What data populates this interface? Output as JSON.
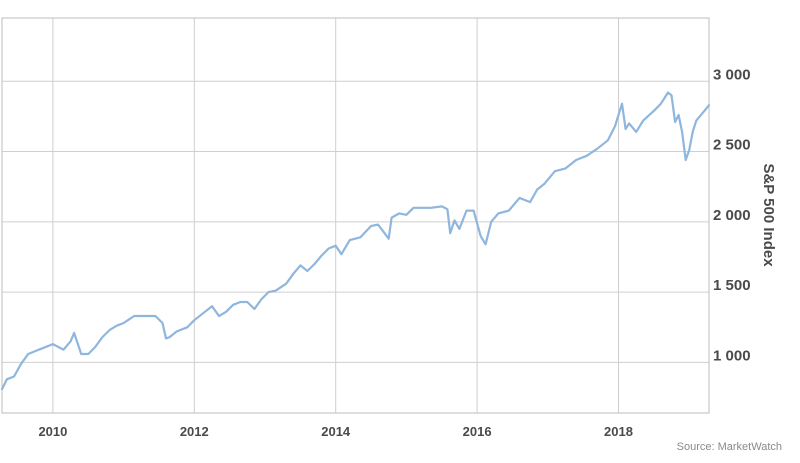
{
  "source": "Source: MarketWatch",
  "colors": {
    "line": "#8fb6dd",
    "grid": "#cfcfcf",
    "frame": "#bdbdbd",
    "text": "#4a4a4a"
  },
  "chart_data": {
    "type": "line",
    "xlabel": "",
    "ylabel": "S&P 500 Index",
    "xlim": [
      2009.28,
      2019.28
    ],
    "ylim": [
      640,
      3450
    ],
    "x_ticks": [
      2010,
      2012,
      2014,
      2016,
      2018
    ],
    "x_tick_labels": [
      "2010",
      "2012",
      "2014",
      "2016",
      "2018"
    ],
    "y_ticks": [
      1000,
      1500,
      2000,
      2500,
      3000
    ],
    "y_tick_labels": [
      "1 000",
      "1 500",
      "2 000",
      "2 500",
      "3 000"
    ],
    "y_axis_position": "right",
    "grid": true,
    "legend": "none",
    "series": [
      {
        "x": [
          2009.28,
          2009.35,
          2009.45,
          2009.55,
          2009.65,
          2009.75,
          2009.85,
          2010.0,
          2010.15,
          2010.25,
          2010.3,
          2010.4,
          2010.5,
          2010.6,
          2010.7,
          2010.8,
          2010.9,
          2011.0,
          2011.15,
          2011.3,
          2011.45,
          2011.55,
          2011.6,
          2011.65,
          2011.75,
          2011.9,
          2012.0,
          2012.15,
          2012.25,
          2012.35,
          2012.45,
          2012.55,
          2012.65,
          2012.75,
          2012.85,
          2012.95,
          2013.05,
          2013.15,
          2013.3,
          2013.4,
          2013.5,
          2013.6,
          2013.7,
          2013.8,
          2013.9,
          2014.0,
          2014.08,
          2014.2,
          2014.35,
          2014.5,
          2014.6,
          2014.75,
          2014.79,
          2014.9,
          2015.0,
          2015.1,
          2015.2,
          2015.35,
          2015.5,
          2015.58,
          2015.62,
          2015.68,
          2015.75,
          2015.85,
          2015.95,
          2016.05,
          2016.12,
          2016.2,
          2016.3,
          2016.45,
          2016.6,
          2016.75,
          2016.85,
          2016.95,
          2017.1,
          2017.25,
          2017.4,
          2017.55,
          2017.7,
          2017.85,
          2017.95,
          2018.05,
          2018.1,
          2018.15,
          2018.25,
          2018.35,
          2018.5,
          2018.6,
          2018.7,
          2018.75,
          2018.8,
          2018.85,
          2018.9,
          2018.95,
          2019.0,
          2019.05,
          2019.1,
          2019.2,
          2019.28
        ],
        "y": [
          810,
          880,
          900,
          990,
          1060,
          1080,
          1100,
          1130,
          1090,
          1150,
          1210,
          1060,
          1060,
          1110,
          1180,
          1230,
          1260,
          1280,
          1330,
          1330,
          1330,
          1280,
          1170,
          1180,
          1220,
          1250,
          1300,
          1360,
          1400,
          1330,
          1360,
          1410,
          1430,
          1430,
          1380,
          1450,
          1500,
          1510,
          1560,
          1630,
          1690,
          1650,
          1700,
          1760,
          1810,
          1830,
          1770,
          1870,
          1890,
          1970,
          1980,
          1880,
          2030,
          2060,
          2050,
          2100,
          2100,
          2100,
          2110,
          2090,
          1920,
          2010,
          1950,
          2080,
          2080,
          1900,
          1840,
          2000,
          2060,
          2080,
          2170,
          2140,
          2230,
          2270,
          2360,
          2380,
          2440,
          2470,
          2520,
          2580,
          2680,
          2840,
          2660,
          2700,
          2640,
          2720,
          2790,
          2840,
          2920,
          2900,
          2710,
          2760,
          2640,
          2440,
          2510,
          2640,
          2720,
          2780,
          2830
        ]
      }
    ]
  }
}
